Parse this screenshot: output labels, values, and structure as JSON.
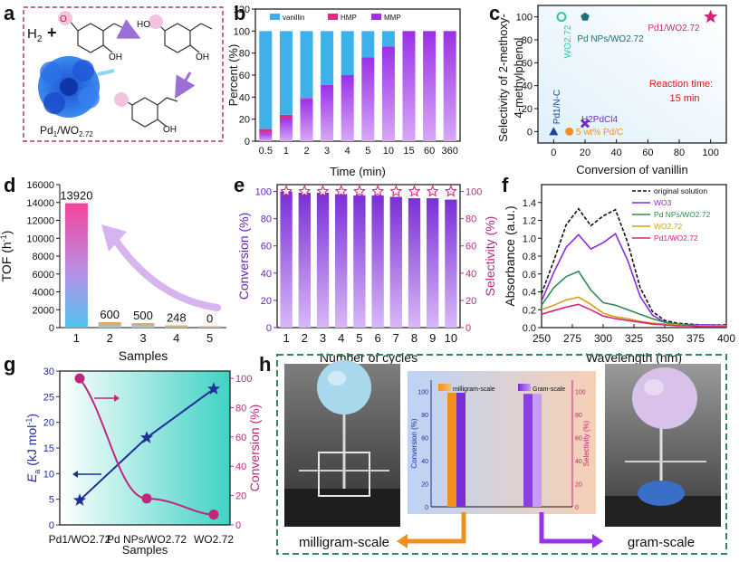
{
  "figure_description": "Multi-panel figure: selective hydrogenation of vanillin over Pd1/WO2.72",
  "panel_labels": [
    "a",
    "b",
    "c",
    "d",
    "e",
    "f",
    "g",
    "h"
  ],
  "colors": {
    "vanillin": "#3fb1ea",
    "hmp": "#f0247a",
    "mmp": "#9b30e8",
    "purple_bar": "#8a3fe0",
    "star": "#c2267a",
    "frame_pink": "#b8327a",
    "frame_green": "#2e8b57",
    "orange": "#f0901c",
    "teal": "#33c6a6"
  },
  "panel_a": {
    "h2_label": "H",
    "h2_sub": "2",
    "plus": "+",
    "oh_label_1": "OH",
    "oh_label_2": "OH",
    "ho_label": "HO",
    "oxygen_label": "O",
    "catalyst_label_main": "Pd",
    "catalyst_label_sub1": "1",
    "catalyst_label_mid": "/WO",
    "catalyst_label_sub2": "2.72"
  },
  "chart_data": [
    {
      "panel": "b",
      "type": "bar",
      "stacked": true,
      "categories": [
        "0.5",
        "1",
        "2",
        "3",
        "4",
        "5",
        "10",
        "15",
        "60",
        "360"
      ],
      "series": [
        {
          "name": "vanillin",
          "values": [
            89,
            76,
            61,
            49,
            40,
            24,
            14,
            0,
            0,
            0
          ]
        },
        {
          "name": "HMP",
          "values": [
            3,
            3,
            1,
            0,
            0,
            0,
            0,
            0,
            0,
            0
          ]
        },
        {
          "name": "MMP",
          "values": [
            8,
            21,
            38,
            51,
            60,
            76,
            86,
            100,
            100,
            100
          ]
        }
      ],
      "xlabel": "Time (min)",
      "ylabel": "Percent (%)",
      "ylim": [
        0,
        120
      ],
      "yticks": [
        "0",
        "20",
        "40",
        "60",
        "80",
        "100",
        "120"
      ],
      "legend": "top"
    },
    {
      "panel": "c",
      "type": "scatter",
      "xlabel": "Conversion of vanillin",
      "ylabel_line1": "Selectivity of 2-methoxy-",
      "ylabel_line2": "4-methylphenol",
      "xlim": [
        -10,
        110
      ],
      "ylim": [
        -10,
        110
      ],
      "xticks": [
        "0",
        "20",
        "40",
        "60",
        "80",
        "100"
      ],
      "yticks": [
        "0",
        "20",
        "40",
        "60",
        "80",
        "100"
      ],
      "points": [
        {
          "label": "Pd1/WO2.72",
          "x": 100,
          "y": 100,
          "marker": "star"
        },
        {
          "label": "Pd NPs/WO2.72",
          "x": 20,
          "y": 100,
          "marker": "pentagon"
        },
        {
          "label": "WO2.72",
          "x": 5,
          "y": 100,
          "marker": "open-circle"
        },
        {
          "label": "H2PdCl4",
          "x": 20,
          "y": 7,
          "marker": "cross"
        },
        {
          "label": "5 wt% Pd/C",
          "x": 10,
          "y": 0,
          "marker": "circle"
        },
        {
          "label": "Pd1/N-C",
          "x": 0,
          "y": 0,
          "marker": "triangle"
        }
      ],
      "annotation_line1": "Reaction time:",
      "annotation_line2": "15 min"
    },
    {
      "panel": "d",
      "type": "bar",
      "categories": [
        "1",
        "2",
        "3",
        "4",
        "5"
      ],
      "values": [
        13920,
        600,
        500,
        248,
        0
      ],
      "value_labels": [
        "13920",
        "600",
        "500",
        "248",
        "0"
      ],
      "xlabel": "Samples",
      "ylabel": "TOF (h",
      "ylabel_sup": "-1",
      "ylabel_end": ")",
      "ylim": [
        0,
        16000
      ],
      "yticks": [
        "0",
        "2000",
        "4000",
        "6000",
        "8000",
        "10000",
        "12000",
        "14000",
        "16000"
      ]
    },
    {
      "panel": "e",
      "type": "bar",
      "categories": [
        "1",
        "2",
        "3",
        "4",
        "5",
        "6",
        "7",
        "8",
        "9",
        "10"
      ],
      "series": [
        {
          "name": "Conversion",
          "values": [
            100,
            99,
            99,
            98,
            97,
            97,
            96,
            95,
            95,
            94
          ]
        },
        {
          "name": "Selectivity",
          "values": [
            100,
            100,
            100,
            100,
            100,
            100,
            100,
            100,
            100,
            100
          ]
        }
      ],
      "xlabel": "Number of cycles",
      "ylabel_left": "Conversion (%)",
      "ylabel_right": "Selectivity (%)",
      "ylim": [
        0,
        105
      ],
      "yticks": [
        "0",
        "20",
        "40",
        "60",
        "80",
        "100"
      ]
    },
    {
      "panel": "f",
      "type": "line",
      "x": [
        250,
        260,
        270,
        280,
        290,
        300,
        310,
        320,
        330,
        340,
        350,
        360,
        370,
        380,
        390,
        400
      ],
      "series": [
        {
          "name": "original solution",
          "values": [
            0.38,
            0.75,
            1.15,
            1.33,
            1.14,
            1.25,
            1.32,
            0.95,
            0.45,
            0.18,
            0.08,
            0.05,
            0.04,
            0.03,
            0.03,
            0.03
          ]
        },
        {
          "name": "WO3",
          "values": [
            0.3,
            0.62,
            0.9,
            1.04,
            0.88,
            0.95,
            1.05,
            0.75,
            0.35,
            0.14,
            0.06,
            0.04,
            0.03,
            0.03,
            0.03,
            0.02
          ]
        },
        {
          "name": "Pd NPs/WO2.72",
          "values": [
            0.25,
            0.45,
            0.57,
            0.63,
            0.42,
            0.28,
            0.25,
            0.2,
            0.15,
            0.1,
            0.06,
            0.04,
            0.03,
            0.02,
            0.02,
            0.02
          ]
        },
        {
          "name": "WO2.72",
          "values": [
            0.2,
            0.25,
            0.31,
            0.34,
            0.26,
            0.16,
            0.12,
            0.1,
            0.07,
            0.05,
            0.04,
            0.03,
            0.02,
            0.02,
            0.02,
            0.02
          ]
        },
        {
          "name": "Pd1/WO2.72",
          "values": [
            0.15,
            0.19,
            0.23,
            0.26,
            0.2,
            0.13,
            0.1,
            0.08,
            0.06,
            0.04,
            0.03,
            0.02,
            0.02,
            0.01,
            0.01,
            0.01
          ]
        }
      ],
      "xlabel": "Wavelength (nm)",
      "ylabel": "Absorbance (a.u.)",
      "xlim": [
        250,
        400
      ],
      "ylim": [
        0,
        1.6
      ],
      "xticks": [
        "250",
        "275",
        "300",
        "325",
        "350",
        "375",
        "400"
      ],
      "yticks": [
        "0.0",
        "0.2",
        "0.4",
        "0.6",
        "0.8",
        "1.0",
        "1.2",
        "1.4"
      ],
      "legend": "top-right"
    },
    {
      "panel": "g",
      "type": "line",
      "categories": [
        "Pd1/WO2.72",
        "Pd NPs/WO2.72",
        "WO2.72"
      ],
      "series": [
        {
          "name": "Ea (kJ mol-1)",
          "values": [
            4.8,
            17,
            26.5
          ],
          "axis": "left"
        },
        {
          "name": "Conversion (%)",
          "values": [
            100,
            18,
            7
          ],
          "axis": "right"
        }
      ],
      "xlabel": "Samples",
      "ylabel_left": "E",
      "ylabel_left_sub": "a",
      "ylabel_left_rest": " (kJ mol",
      "ylabel_left_sup": "-1",
      "ylabel_left_end": ")",
      "ylabel_right": "Conversion (%)",
      "ylim_left": [
        0,
        30
      ],
      "ylim_right": [
        0,
        105
      ],
      "yticks_left": [
        "0",
        "5",
        "10",
        "15",
        "20",
        "25",
        "30"
      ],
      "yticks_right": [
        "0",
        "20",
        "40",
        "60",
        "80",
        "100"
      ]
    },
    {
      "panel": "h",
      "type": "bar",
      "categories": [
        "milligram-scale",
        "Gram-scale"
      ],
      "series": [
        {
          "name": "Conversion",
          "values": [
            99,
            98
          ]
        },
        {
          "name": "Selectivity",
          "values": [
            99,
            98
          ]
        }
      ],
      "ylabel_left": "Conversion (%)",
      "ylabel_right": "Selectivity (%)",
      "ylim": [
        0,
        110
      ],
      "yticks": [
        "0",
        "20",
        "40",
        "60",
        "80",
        "100"
      ],
      "caption_left": "milligram-scale",
      "caption_right": "gram-scale"
    }
  ]
}
